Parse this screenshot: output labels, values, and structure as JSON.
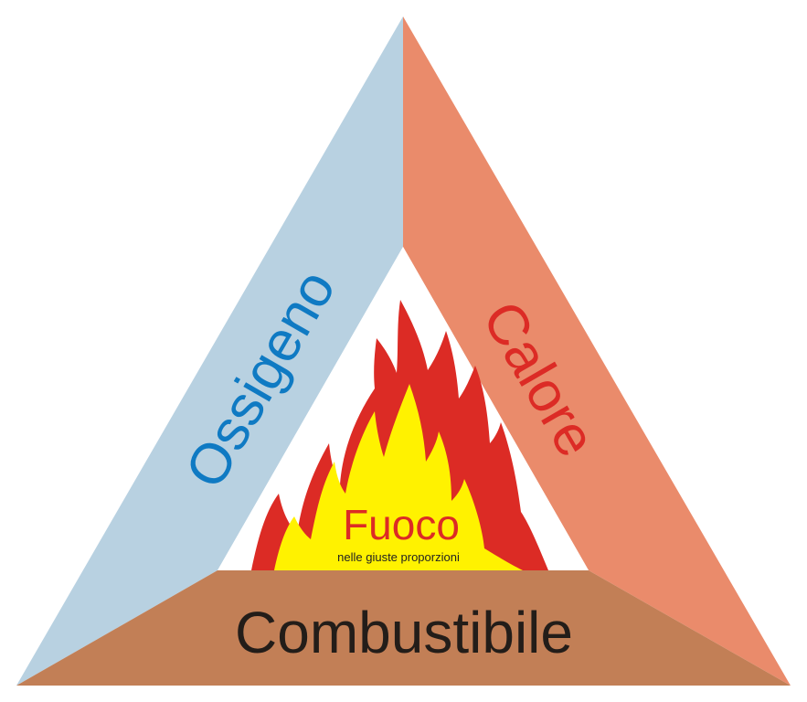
{
  "diagram": {
    "left_side": {
      "label": "Ossigeno",
      "fill": "#b8d1e1",
      "text_color": "#0f7ac3"
    },
    "right_side": {
      "label": "Calore",
      "fill": "#ea8b6b",
      "text_color": "#dc2b25"
    },
    "bottom_side": {
      "label": "Combustibile",
      "fill": "#c27f56",
      "text_color": "#231d19"
    },
    "center": {
      "title": "Fuoco",
      "subtitle": "nelle giuste proporzioni",
      "title_color": "#dc2b25",
      "subtitle_color": "#222222",
      "flame_outer": "#dc2b25",
      "flame_inner": "#fff200"
    }
  }
}
